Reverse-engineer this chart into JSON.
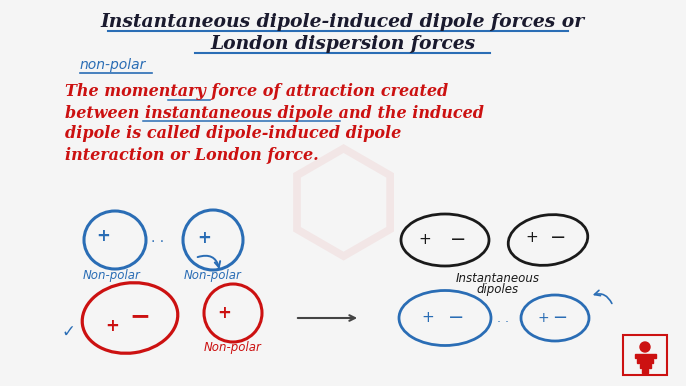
{
  "bg_color": "#f5f5f5",
  "title_line1": "Instantaneous dipole-induced dipole forces or",
  "title_line2": "London dispersion forces",
  "title_color": "#1a1a2e",
  "title_fontsize": 13.5,
  "title_underline_color": "#2a6db5",
  "subtitle": "non-polar",
  "subtitle_color": "#2a6db5",
  "subtitle_fontsize": 10,
  "body_lines": [
    "The momentary force of attraction created",
    "between instantaneous dipole and the induced",
    "dipole is called dipole-induced dipole",
    "interaction or London force."
  ],
  "body_color": "#cc1111",
  "body_fontsize": 11.5,
  "blue_color": "#2a6db5",
  "red_color": "#cc1111",
  "black_color": "#1a1a1a",
  "logo_color": "#cc1111"
}
